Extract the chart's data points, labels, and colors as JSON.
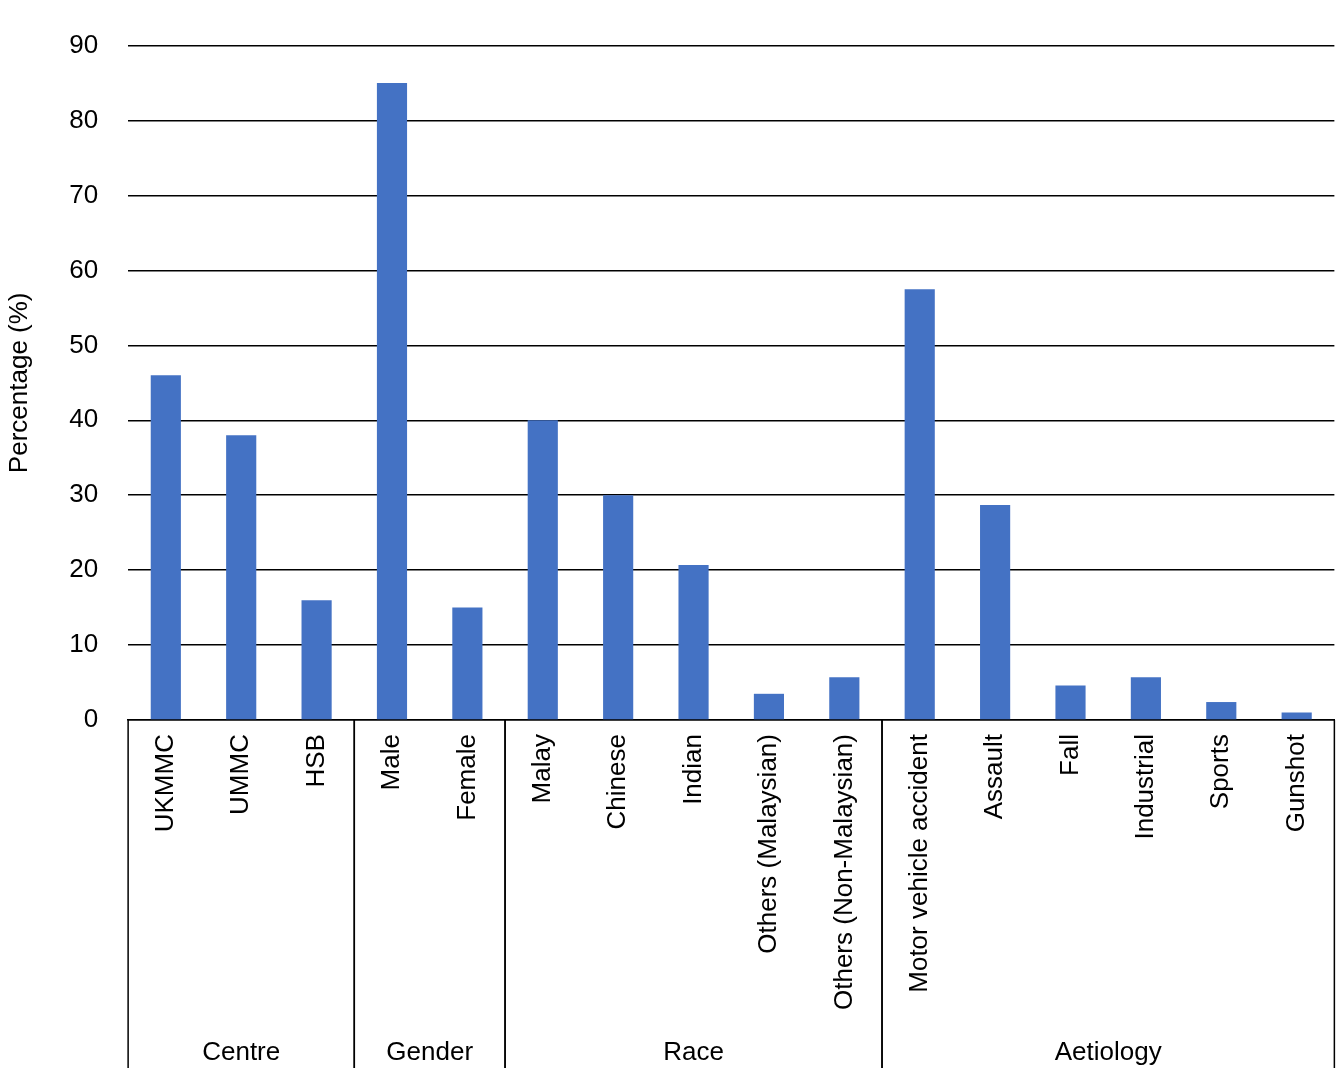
{
  "chart_data": {
    "type": "bar",
    "ylabel": "Percentage (%)",
    "categories": [
      "UKMMC",
      "UMMC",
      "HSB",
      "Male",
      "Female",
      "Malay",
      "Chinese",
      "Indian",
      "Others (Malaysian)",
      "Others (Non-Malaysian)",
      "Motor vehicle accident",
      "Assault",
      "Fall",
      "Industrial",
      "Sports",
      "Gunshot"
    ],
    "values": [
      46,
      38,
      16,
      85,
      15,
      40,
      30,
      20.7,
      3.5,
      5.7,
      57.5,
      28.7,
      4.6,
      5.7,
      2.4,
      1
    ],
    "color": "#4472c4",
    "ylim": [
      0,
      90
    ],
    "yticks": [
      0,
      10,
      20,
      30,
      40,
      50,
      60,
      70,
      80,
      90
    ],
    "grid": "y",
    "legend": false,
    "annotations": [
      "Centre",
      "Gender",
      "Race",
      "Aetiology"
    ]
  }
}
